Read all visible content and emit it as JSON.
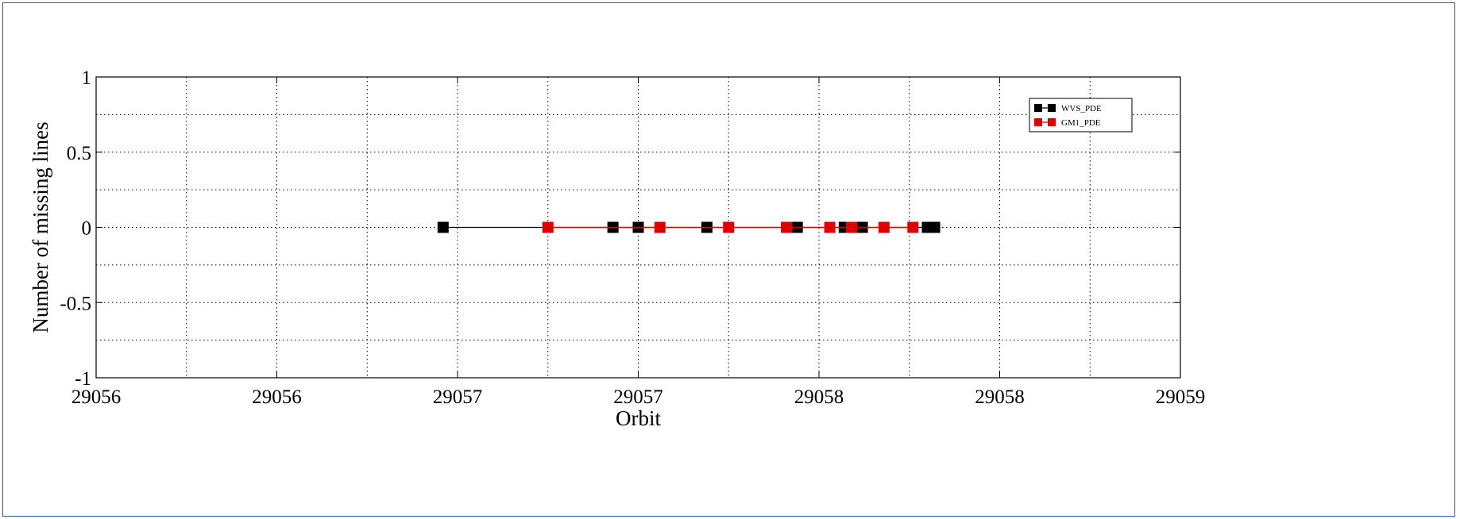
{
  "chart_data": {
    "type": "line",
    "title": "",
    "xlabel": "Orbit",
    "ylabel": "Number of missing lines",
    "xlim": [
      29056.0,
      29059.0
    ],
    "ylim": [
      -1,
      1
    ],
    "x_tick_values": [
      29056.0,
      29056.5,
      29057.0,
      29057.5,
      29058.0,
      29058.5,
      29059.0
    ],
    "x_tick_labels": [
      "29056",
      "29056",
      "29057",
      "29057",
      "29058",
      "29058",
      "29059"
    ],
    "x_grid_values": [
      29056.25,
      29056.75,
      29057.25,
      29057.75,
      29058.25,
      29058.75
    ],
    "y_tick_values": [
      1,
      0.5,
      0,
      -0.5,
      -1
    ],
    "y_tick_labels": [
      "1",
      "0.5",
      "0",
      "-0.5",
      "-1"
    ],
    "y_grid_values": [
      0.75,
      0.25,
      -0.25,
      -0.75
    ],
    "grid": true,
    "legend_position": "top-right",
    "series": [
      {
        "name": "WVS_PDE",
        "color": "#000000",
        "marker": "square",
        "x": [
          29056.96,
          29057.43,
          29057.5,
          29057.69,
          29057.92,
          29057.94,
          29058.07,
          29058.12,
          29058.3,
          29058.32
        ],
        "y": [
          0,
          0,
          0,
          0,
          0,
          0,
          0,
          0,
          0,
          0
        ]
      },
      {
        "name": "GM1_PDE",
        "color": "#e00000",
        "marker": "square",
        "x": [
          29057.25,
          29057.56,
          29057.75,
          29057.91,
          29058.03,
          29058.09,
          29058.18,
          29058.26
        ],
        "y": [
          0,
          0,
          0,
          0,
          0,
          0,
          0,
          0
        ]
      }
    ]
  }
}
